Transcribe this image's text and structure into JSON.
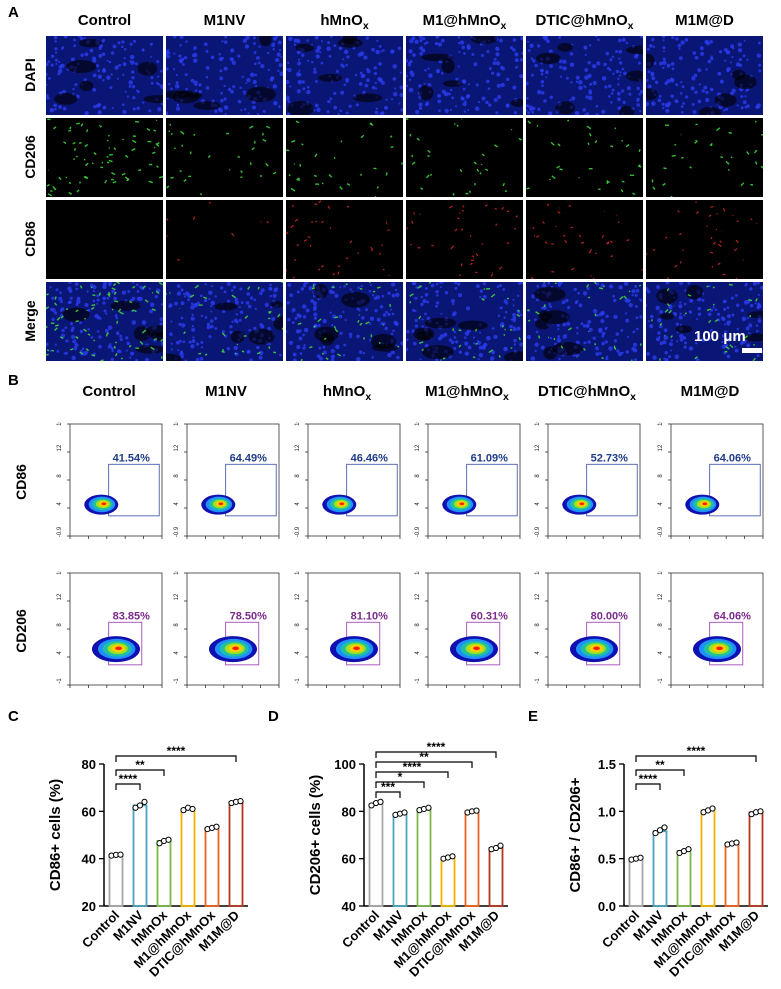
{
  "panel_a": {
    "letter": "A",
    "columns": [
      "Control",
      "M1NV",
      "hMnOx",
      "M1@hMnOx",
      "DTIC@hMnOx",
      "M1M@D"
    ],
    "rows": [
      "DAPI",
      "CD206",
      "CD86",
      "Merge"
    ],
    "scale_bar": "100 μm"
  },
  "panel_b": {
    "letter": "B",
    "columns": [
      "Control",
      "M1NV",
      "hMnOx",
      "M1@hMnOx",
      "DTIC@hMnOx",
      "M1M@D"
    ],
    "rows": [
      {
        "label": "CD86",
        "percent_color": "#1f3c88",
        "gate_color": "#4a5fb0",
        "percents": [
          "41.54%",
          "64.49%",
          "46.46%",
          "61.09%",
          "52.73%",
          "64.06%"
        ],
        "yticks": [
          "-0.9",
          "4",
          "8",
          "12",
          "16.8"
        ]
      },
      {
        "label": "CD206",
        "percent_color": "#7b2a8c",
        "gate_color": "#a04ab8",
        "percents": [
          "83.85%",
          "78.50%",
          "81.10%",
          "60.31%",
          "80.00%",
          "64.06%"
        ],
        "yticks": [
          "-1",
          "4",
          "8",
          "12",
          "16.8"
        ]
      }
    ]
  },
  "chart_data": [
    {
      "letter": "C",
      "type": "bar",
      "ylabel": "CD86+ cells (%)",
      "ylim": [
        20,
        80
      ],
      "yticks": [
        20,
        40,
        60,
        80
      ],
      "categories": [
        "Control",
        "M1NV",
        "hMnOx",
        "M1@hMnOx",
        "DTIC@hMnOx",
        "M1M@D"
      ],
      "values": [
        41.5,
        62.5,
        47.5,
        61,
        53,
        64
      ],
      "points": [
        [
          41.3,
          41.6,
          41.7
        ],
        [
          61.5,
          62.5,
          64.0
        ],
        [
          46.5,
          47.5,
          48.0
        ],
        [
          60.5,
          61.5,
          61.0
        ],
        [
          52.5,
          53.0,
          53.5
        ],
        [
          63.5,
          64.0,
          64.3
        ]
      ],
      "significance": [
        "****",
        "**",
        "****"
      ],
      "colors": [
        "#a8a8a8",
        "#4aa3c0",
        "#7ab648",
        "#f0b400",
        "#e8641e",
        "#b5361f"
      ]
    },
    {
      "letter": "D",
      "type": "bar",
      "ylabel": "CD206+ cells (%)",
      "ylim": [
        40,
        100
      ],
      "yticks": [
        40,
        60,
        80,
        100
      ],
      "categories": [
        "Control",
        "M1NV",
        "hMnOx",
        "M1@hMnOx",
        "DTIC@hMnOx",
        "M1M@D"
      ],
      "values": [
        83,
        79,
        81,
        60.5,
        80,
        64.5
      ],
      "points": [
        [
          82.5,
          83.5,
          84.0
        ],
        [
          78.5,
          79.0,
          79.5
        ],
        [
          80.5,
          81.0,
          81.5
        ],
        [
          60.0,
          60.5,
          61.0
        ],
        [
          79.5,
          80.0,
          80.3
        ],
        [
          64.0,
          64.5,
          65.5
        ]
      ],
      "significance": [
        "***",
        "*",
        "****",
        "**",
        "****"
      ],
      "colors": [
        "#a8a8a8",
        "#4aa3c0",
        "#7ab648",
        "#f0b400",
        "#e8641e",
        "#b5361f"
      ]
    },
    {
      "letter": "E",
      "type": "bar",
      "ylabel": "CD86+ / CD206+",
      "ylim": [
        0,
        1.5
      ],
      "yticks": [
        "0.0",
        "0.5",
        "1.0",
        "1.5"
      ],
      "categories": [
        "Control",
        "M1NV",
        "hMnOx",
        "M1@hMnOx",
        "DTIC@hMnOx",
        "M1M@D"
      ],
      "values": [
        0.5,
        0.79,
        0.58,
        1.01,
        0.66,
        0.99
      ],
      "points": [
        [
          0.49,
          0.5,
          0.51
        ],
        [
          0.77,
          0.8,
          0.83
        ],
        [
          0.56,
          0.58,
          0.6
        ],
        [
          0.99,
          1.01,
          1.03
        ],
        [
          0.65,
          0.66,
          0.67
        ],
        [
          0.97,
          0.99,
          1.0
        ]
      ],
      "significance": [
        "****",
        "**",
        "****"
      ],
      "colors": [
        "#a8a8a8",
        "#4aa3c0",
        "#7ab648",
        "#f0b400",
        "#e8641e",
        "#b5361f"
      ]
    }
  ]
}
